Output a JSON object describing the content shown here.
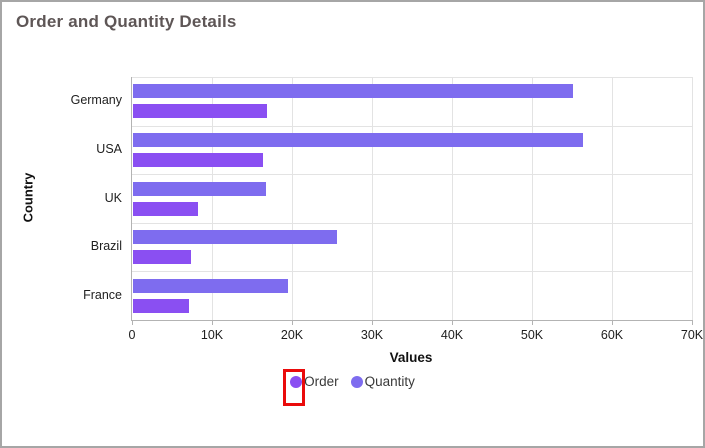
{
  "chart_title": "Order and Quantity Details",
  "axes": {
    "x_title": "Values",
    "y_title": "Country"
  },
  "chart_data": {
    "type": "bar",
    "orientation": "horizontal",
    "title": "Order and Quantity Details",
    "categories": [
      "Germany",
      "USA",
      "UK",
      "Brazil",
      "France"
    ],
    "series": [
      {
        "name": "Order",
        "color": "#8a4ff2",
        "values": [
          16800,
          16200,
          8100,
          7200,
          7000
        ]
      },
      {
        "name": "Quantity",
        "color": "#7e6cef",
        "values": [
          55000,
          56200,
          16600,
          25500,
          19400
        ]
      }
    ],
    "xlabel": "Values",
    "ylabel": "Country",
    "xlim": [
      0,
      70000
    ],
    "x_ticks": [
      {
        "value": 0,
        "label": "0"
      },
      {
        "value": 10000,
        "label": "10K"
      },
      {
        "value": 20000,
        "label": "20K"
      },
      {
        "value": 30000,
        "label": "30K"
      },
      {
        "value": 40000,
        "label": "40K"
      },
      {
        "value": 50000,
        "label": "50K"
      },
      {
        "value": 60000,
        "label": "60K"
      },
      {
        "value": 70000,
        "label": "70K"
      }
    ],
    "grid": true,
    "legend_position": "bottom"
  },
  "legend": {
    "items": [
      {
        "label": "Order",
        "color": "#8a4ff2",
        "highlighted": true
      },
      {
        "label": "Quantity",
        "color": "#7e6cef",
        "highlighted": false
      }
    ],
    "highlight_color": "#ea0b0b"
  },
  "colors": {
    "grid_line": "#e3e3e3",
    "axis_line": "#b3b3b3",
    "tick_text": "#1e1e1e",
    "title_text": "#5e5656"
  }
}
